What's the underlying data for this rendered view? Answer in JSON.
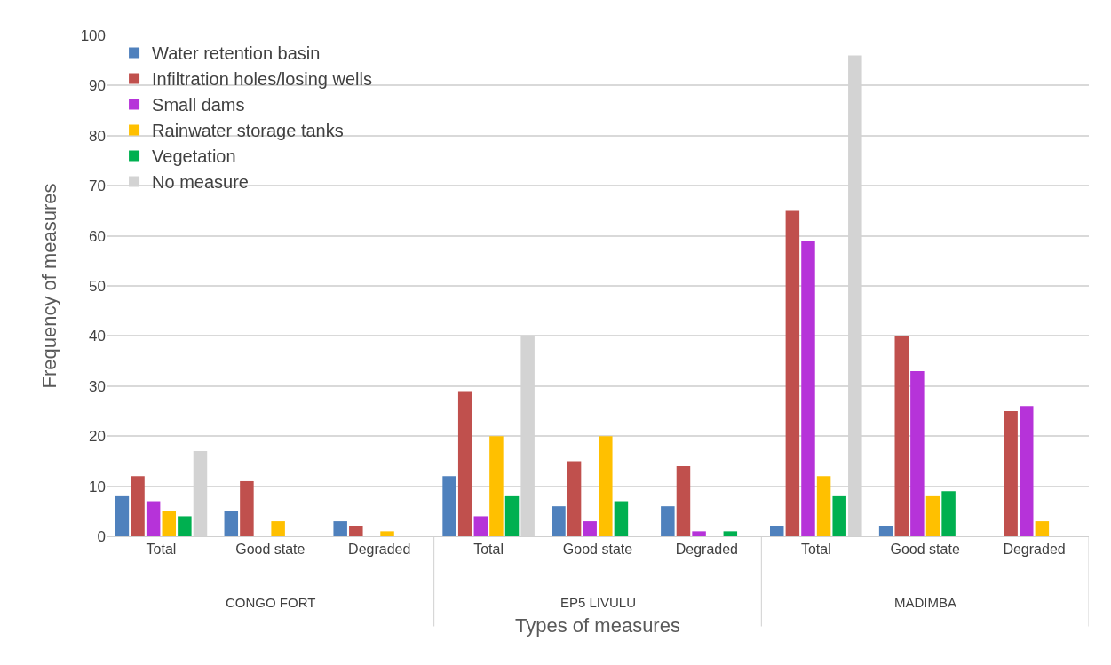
{
  "chart_data": {
    "type": "bar",
    "xlabel": "Types of measures",
    "ylabel": "Frequency of measures",
    "categories": [
      "Total",
      "Good state",
      "Degraded",
      "Total",
      "Good state",
      "Degraded",
      "Total",
      "Good state",
      "Degraded"
    ],
    "annotations": [
      "CONGO FORT",
      "EP5 LIVULU",
      "MADIMBA"
    ],
    "series": [
      {
        "name": "Water retention basin",
        "color": "#4f81bd",
        "values": [
          8,
          5,
          3,
          12,
          6,
          6,
          2,
          2,
          0
        ]
      },
      {
        "name": "Infiltration holes/losing wells",
        "color": "#c0504d",
        "values": [
          12,
          11,
          2,
          29,
          15,
          14,
          65,
          40,
          25
        ]
      },
      {
        "name": "Small dams",
        "color": "#b633d9",
        "values": [
          7,
          0,
          0,
          4,
          3,
          1,
          59,
          33,
          26
        ]
      },
      {
        "name": "Rainwater storage tanks",
        "color": "#ffc000",
        "values": [
          5,
          3,
          1,
          20,
          20,
          0,
          12,
          8,
          3
        ]
      },
      {
        "name": "Vegetation",
        "color": "#00b050",
        "values": [
          4,
          0,
          0,
          8,
          7,
          1,
          8,
          9,
          0
        ]
      },
      {
        "name": "No measure",
        "color": "#d3d3d3",
        "values": [
          17,
          0,
          0,
          40,
          0,
          0,
          96,
          0,
          0
        ]
      }
    ],
    "ylim": [
      0,
      100
    ],
    "yticks": [
      0,
      10,
      20,
      30,
      40,
      50,
      60,
      70,
      80,
      90,
      100
    ],
    "grid": "y",
    "legend": "top left"
  }
}
